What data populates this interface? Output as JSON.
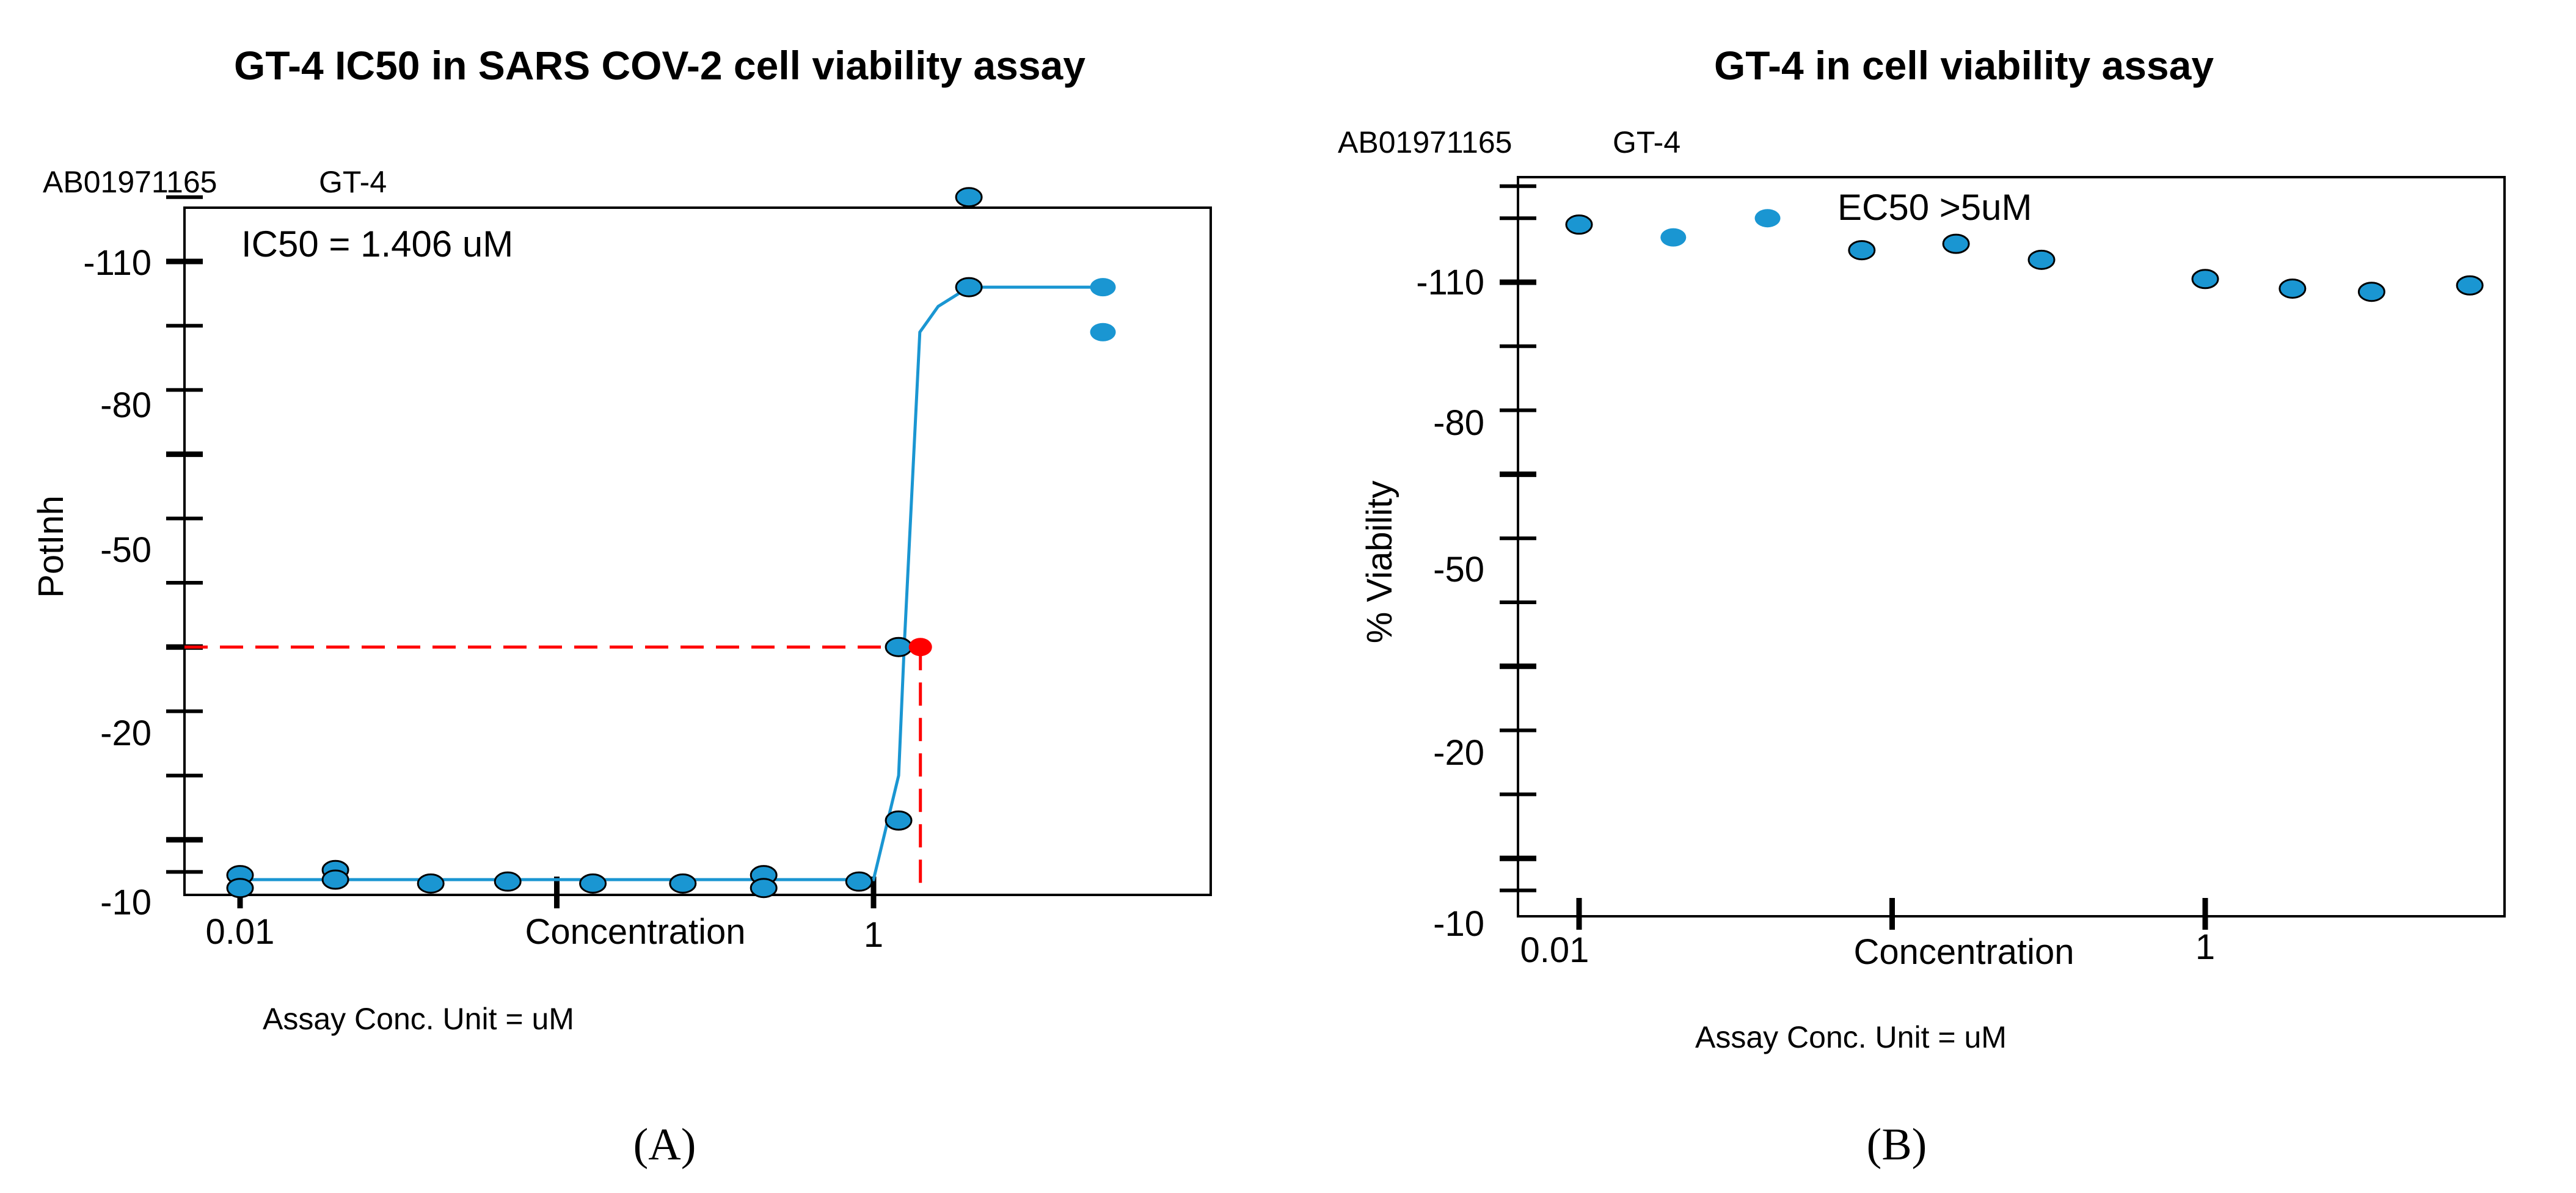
{
  "colors": {
    "point": "#1a96d2",
    "line": "#1a96d2",
    "ic50": "#ff0000",
    "axis": "#000000"
  },
  "chart_data": [
    {
      "type": "scatter",
      "panel": "(A)",
      "title": "GT-4 IC50 in SARS COV-2 cell viability assay",
      "compound_id": "AB01971165",
      "compound_name": "GT-4",
      "annotation": "IC50  = 1.406  uM",
      "xlabel": "Concentration",
      "ylabel": "PotInh",
      "unit_note": "Assay Conc. Unit = uM",
      "x_scale": "log",
      "xlim": [
        0.0078,
        30
      ],
      "ylim": [
        -10,
        -123
      ],
      "x_tick_labels": [
        "0.01",
        "1"
      ],
      "y_tick_labels": [
        "-110",
        "-80",
        "-50",
        "-20",
        "-10"
      ],
      "y_tick_values": [
        -110,
        -80,
        -50,
        -20,
        -10
      ],
      "points_x": [
        0.01,
        0.01,
        0.02,
        0.02,
        0.04,
        0.07,
        0.13,
        0.25,
        0.45,
        0.45,
        0.9,
        1.2,
        1.2,
        2.0,
        2.0,
        5.3,
        5.3
      ],
      "points_y": [
        -14.5,
        -12.5,
        -15.3,
        -13.8,
        -13.2,
        -13.5,
        -13.2,
        -13.2,
        -14.5,
        -12.5,
        -13.5,
        -23,
        -50,
        -120,
        -106,
        -106,
        -99
      ],
      "fit_line_x": [
        0.01,
        0.3,
        1.0,
        1.2,
        1.25,
        1.4,
        1.6,
        2.0,
        5.3
      ],
      "fit_line_y": [
        -13.8,
        -13.8,
        -13.8,
        -30,
        -50,
        -99,
        -103,
        -106,
        -106
      ],
      "ic50": {
        "x": 1.406,
        "y": -50
      }
    },
    {
      "type": "scatter",
      "panel": "(B)",
      "title": "GT-4 in cell viability assay",
      "compound_id": "AB01971165",
      "compound_name": "GT-4",
      "annotation": "EC50  >5uM",
      "xlabel": "Concentration",
      "ylabel": "% Viability",
      "unit_note": "Assay Conc. Unit = uM",
      "x_scale": "log",
      "xlim": [
        0.0065,
        12
      ],
      "ylim": [
        -10,
        -125
      ],
      "x_tick_labels": [
        "0.01",
        "1"
      ],
      "y_tick_labels": [
        "-110",
        "-80",
        "-50",
        "-20",
        "-10"
      ],
      "y_tick_values": [
        -110,
        -80,
        -50,
        -20,
        -10
      ],
      "points_x": [
        0.01,
        0.02,
        0.04,
        0.08,
        0.16,
        0.3,
        1.0,
        1.9,
        3.4,
        7.0
      ],
      "points_y": [
        -119,
        -117,
        -120,
        -115,
        -116,
        -113.5,
        -110.5,
        -109,
        -108.5,
        -109.5
      ]
    }
  ]
}
